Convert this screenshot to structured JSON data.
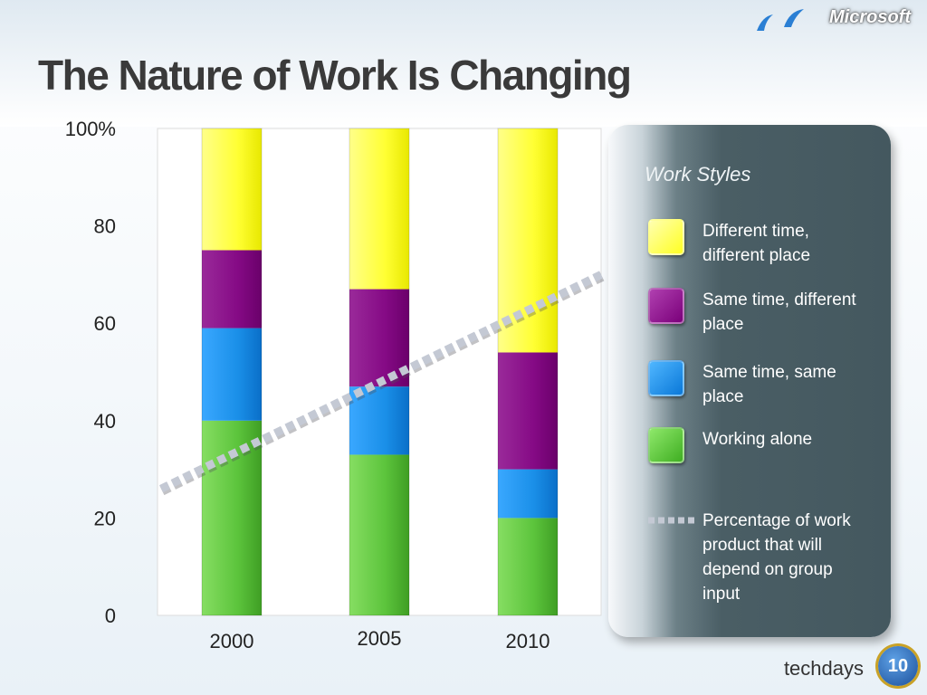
{
  "slide": {
    "title": "The Nature of Work Is Changing",
    "brand": "Microsoft",
    "footer_brand": "techdays",
    "footer_badge": "10"
  },
  "chart_data": {
    "type": "bar",
    "stacked": true,
    "categories": [
      "2000",
      "2005",
      "2010"
    ],
    "y_tick_labels": [
      "0",
      "20",
      "40",
      "60",
      "80",
      "100%"
    ],
    "ylim": [
      0,
      100
    ],
    "series": [
      {
        "name": "Working alone",
        "values": [
          40,
          33,
          20
        ],
        "color": "#5cc43c"
      },
      {
        "name": "Same time, same place",
        "values": [
          19,
          14,
          10
        ],
        "color": "#1a8fe8"
      },
      {
        "name": "Same time, different place",
        "values": [
          16,
          20,
          24
        ],
        "color": "#8a0a8a"
      },
      {
        "name": "Different time, different place",
        "values": [
          25,
          33,
          46
        ],
        "color": "#ffff33"
      }
    ],
    "trend_line": {
      "name": "Percentage of work product that will depend on group input",
      "start": {
        "x": "2000-left",
        "y": 26
      },
      "end": {
        "x": "2010-right",
        "y": 70
      },
      "color": "#c4c9d4"
    },
    "legend_title": "Work Styles",
    "legend_labels": [
      "Different time, different place",
      "Same time, different place",
      "Same time, same place",
      "Working alone",
      "Percentage of work product that will depend on group input"
    ],
    "grid": false
  }
}
